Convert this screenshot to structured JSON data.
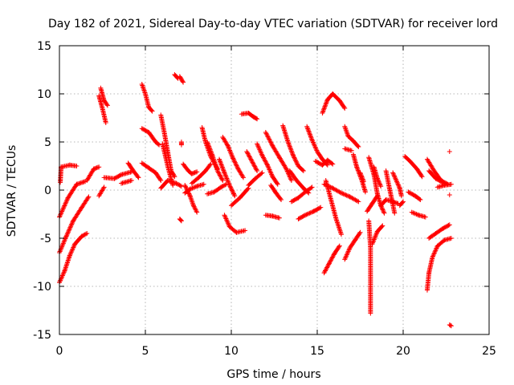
{
  "chart_data": {
    "type": "scatter",
    "title": "Day 182 of 2021, Sidereal Day-to-day VTEC variation (SDTVAR) for receiver lord",
    "xlabel": "GPS time / hours",
    "ylabel": "SDTVAR / TECUs",
    "xlim": [
      0,
      25
    ],
    "ylim": [
      -15,
      15
    ],
    "xticks": [
      0,
      5,
      10,
      15,
      20,
      25
    ],
    "yticks": [
      -15,
      -10,
      -5,
      0,
      5,
      10,
      15
    ],
    "xtick_labels": [
      "0",
      "5",
      "10",
      "15",
      "20",
      "25"
    ],
    "ytick_labels": [
      "-15",
      "-10",
      "-5",
      "0",
      "5",
      "10",
      "15"
    ],
    "grid": true,
    "marker": "+",
    "marker_color": "#ff0000",
    "series_segments": [
      [
        [
          0.0,
          -2.8
        ],
        [
          0.5,
          -0.8
        ],
        [
          1.0,
          0.6
        ],
        [
          1.5,
          0.9
        ]
      ],
      [
        [
          0.0,
          -6.5
        ],
        [
          0.4,
          -4.8
        ],
        [
          0.8,
          -3.2
        ],
        [
          1.3,
          -1.8
        ],
        [
          1.7,
          -0.7
        ]
      ],
      [
        [
          0.0,
          -9.6
        ],
        [
          0.3,
          -8.4
        ],
        [
          0.6,
          -6.8
        ],
        [
          0.9,
          -5.6
        ],
        [
          1.3,
          -4.8
        ],
        [
          1.6,
          -4.5
        ]
      ],
      [
        [
          0.05,
          0.8
        ],
        [
          0.1,
          2.4
        ],
        [
          0.6,
          2.6
        ],
        [
          1.0,
          2.5
        ]
      ],
      [
        [
          1.6,
          1.0
        ],
        [
          2.0,
          2.2
        ],
        [
          2.3,
          2.4
        ]
      ],
      [
        [
          2.3,
          -0.6
        ],
        [
          2.6,
          0.3
        ]
      ],
      [
        [
          2.3,
          9.8
        ],
        [
          2.5,
          8.5
        ],
        [
          2.7,
          7.0
        ]
      ],
      [
        [
          2.4,
          10.6
        ],
        [
          2.6,
          9.3
        ],
        [
          2.8,
          8.8
        ]
      ],
      [
        [
          2.6,
          1.3
        ],
        [
          3.2,
          1.2
        ],
        [
          3.6,
          1.6
        ],
        [
          4.2,
          1.9
        ]
      ],
      [
        [
          3.6,
          0.7
        ],
        [
          4.2,
          1.0
        ]
      ],
      [
        [
          4.0,
          2.8
        ],
        [
          4.3,
          2.0
        ],
        [
          4.6,
          1.3
        ]
      ],
      [
        [
          4.8,
          11.0
        ],
        [
          5.0,
          10.0
        ],
        [
          5.2,
          8.6
        ],
        [
          5.4,
          8.2
        ]
      ],
      [
        [
          4.8,
          6.4
        ],
        [
          5.2,
          6.0
        ],
        [
          5.6,
          5.0
        ],
        [
          5.8,
          4.7
        ]
      ],
      [
        [
          4.8,
          2.8
        ],
        [
          5.2,
          2.3
        ],
        [
          5.6,
          1.8
        ],
        [
          5.9,
          1.0
        ]
      ],
      [
        [
          5.9,
          7.8
        ],
        [
          6.1,
          6.0
        ],
        [
          6.3,
          4.0
        ],
        [
          6.5,
          2.0
        ],
        [
          6.7,
          1.4
        ]
      ],
      [
        [
          6.0,
          4.8
        ],
        [
          6.3,
          2.5
        ],
        [
          6.6,
          0.5
        ]
      ],
      [
        [
          5.9,
          0.2
        ],
        [
          6.3,
          1.0
        ],
        [
          6.8,
          0.7
        ],
        [
          7.1,
          0.4
        ]
      ],
      [
        [
          6.7,
          12.0
        ],
        [
          6.9,
          11.6
        ]
      ],
      [
        [
          7.0,
          11.8
        ],
        [
          7.2,
          11.2
        ]
      ],
      [
        [
          7.1,
          5.0
        ],
        [
          7.1,
          4.7
        ]
      ],
      [
        [
          7.0,
          -3.0
        ],
        [
          7.1,
          -3.2
        ]
      ],
      [
        [
          7.2,
          2.7
        ],
        [
          7.5,
          2.0
        ],
        [
          7.7,
          1.7
        ],
        [
          8.0,
          1.9
        ]
      ],
      [
        [
          7.3,
          -0.3
        ],
        [
          7.6,
          0.1
        ],
        [
          8.0,
          0.4
        ],
        [
          8.4,
          0.6
        ]
      ],
      [
        [
          7.3,
          0.5
        ],
        [
          7.6,
          -0.6
        ],
        [
          7.8,
          -1.6
        ],
        [
          8.0,
          -2.3
        ]
      ],
      [
        [
          7.7,
          0.7
        ],
        [
          8.1,
          1.3
        ],
        [
          8.5,
          2.0
        ],
        [
          8.8,
          2.7
        ]
      ],
      [
        [
          8.3,
          6.5
        ],
        [
          8.5,
          5.0
        ],
        [
          8.8,
          3.5
        ],
        [
          9.2,
          2.2
        ]
      ],
      [
        [
          8.6,
          -0.4
        ],
        [
          9.0,
          -0.2
        ],
        [
          9.4,
          0.3
        ],
        [
          9.7,
          0.6
        ]
      ],
      [
        [
          8.6,
          5.0
        ],
        [
          8.9,
          3.6
        ],
        [
          9.2,
          2.0
        ],
        [
          9.5,
          1.0
        ]
      ],
      [
        [
          9.3,
          3.2
        ],
        [
          9.6,
          1.8
        ],
        [
          9.9,
          0.5
        ],
        [
          10.2,
          -0.6
        ]
      ],
      [
        [
          9.5,
          5.5
        ],
        [
          9.8,
          4.6
        ],
        [
          10.1,
          3.3
        ],
        [
          10.4,
          2.2
        ],
        [
          10.7,
          1.3
        ]
      ],
      [
        [
          9.6,
          -2.6
        ],
        [
          9.9,
          -3.8
        ],
        [
          10.3,
          -4.4
        ],
        [
          10.8,
          -4.2
        ]
      ],
      [
        [
          10.0,
          -1.6
        ],
        [
          10.5,
          -0.8
        ],
        [
          11.0,
          0.2
        ]
      ],
      [
        [
          10.6,
          7.9
        ],
        [
          11.0,
          8.0
        ],
        [
          11.3,
          7.6
        ],
        [
          11.5,
          7.4
        ]
      ],
      [
        [
          10.9,
          4.0
        ],
        [
          11.2,
          3.0
        ],
        [
          11.5,
          2.0
        ]
      ],
      [
        [
          11.0,
          0.5
        ],
        [
          11.4,
          1.2
        ],
        [
          11.8,
          1.8
        ]
      ],
      [
        [
          11.5,
          4.8
        ],
        [
          11.8,
          3.6
        ],
        [
          12.1,
          2.6
        ],
        [
          12.4,
          1.4
        ],
        [
          12.7,
          0.6
        ]
      ],
      [
        [
          12.0,
          6.0
        ],
        [
          12.4,
          4.6
        ],
        [
          12.8,
          3.4
        ],
        [
          13.2,
          2.2
        ],
        [
          13.5,
          1.0
        ]
      ],
      [
        [
          12.0,
          -2.6
        ],
        [
          12.4,
          -2.7
        ],
        [
          12.8,
          -2.9
        ]
      ],
      [
        [
          12.3,
          0.5
        ],
        [
          12.6,
          -0.3
        ],
        [
          12.9,
          -1.0
        ]
      ],
      [
        [
          13.0,
          6.7
        ],
        [
          13.3,
          5.0
        ],
        [
          13.6,
          3.6
        ],
        [
          13.9,
          2.5
        ],
        [
          14.2,
          2.0
        ]
      ],
      [
        [
          13.4,
          2.0
        ],
        [
          13.8,
          1.0
        ],
        [
          14.2,
          0.2
        ],
        [
          14.5,
          -0.3
        ]
      ],
      [
        [
          13.5,
          -1.2
        ],
        [
          13.9,
          -0.8
        ],
        [
          14.3,
          -0.2
        ],
        [
          14.7,
          0.3
        ]
      ],
      [
        [
          13.9,
          -3.0
        ],
        [
          14.3,
          -2.6
        ],
        [
          14.8,
          -2.2
        ],
        [
          15.2,
          -1.8
        ]
      ],
      [
        [
          14.4,
          6.6
        ],
        [
          14.7,
          5.2
        ],
        [
          15.0,
          4.0
        ],
        [
          15.3,
          3.2
        ],
        [
          15.6,
          2.6
        ]
      ],
      [
        [
          14.9,
          3.0
        ],
        [
          15.3,
          2.6
        ],
        [
          15.6,
          3.1
        ],
        [
          15.9,
          2.7
        ]
      ],
      [
        [
          15.3,
          8.0
        ],
        [
          15.6,
          9.4
        ],
        [
          15.9,
          10.0
        ],
        [
          16.3,
          9.3
        ],
        [
          16.6,
          8.5
        ]
      ],
      [
        [
          15.5,
          1.0
        ],
        [
          15.8,
          -1.0
        ],
        [
          16.1,
          -3.0
        ],
        [
          16.4,
          -4.6
        ]
      ],
      [
        [
          15.4,
          -8.6
        ],
        [
          15.7,
          -7.6
        ],
        [
          16.0,
          -6.6
        ],
        [
          16.3,
          -5.8
        ]
      ],
      [
        [
          15.4,
          0.6
        ],
        [
          15.9,
          0.2
        ],
        [
          16.4,
          -0.3
        ],
        [
          16.9,
          -0.7
        ],
        [
          17.4,
          -1.2
        ]
      ],
      [
        [
          16.6,
          6.6
        ],
        [
          16.8,
          5.6
        ],
        [
          17.1,
          5.1
        ],
        [
          17.4,
          4.5
        ]
      ],
      [
        [
          16.6,
          4.3
        ],
        [
          17.0,
          4.1
        ]
      ],
      [
        [
          16.6,
          -7.2
        ],
        [
          16.9,
          -6.0
        ],
        [
          17.2,
          -5.2
        ],
        [
          17.5,
          -4.4
        ]
      ],
      [
        [
          17.1,
          3.7
        ],
        [
          17.3,
          2.4
        ],
        [
          17.6,
          1.0
        ],
        [
          17.8,
          -0.2
        ]
      ],
      [
        [
          17.5,
          1.8
        ],
        [
          17.7,
          0.9
        ]
      ],
      [
        [
          18.0,
          3.4
        ],
        [
          18.3,
          1.6
        ],
        [
          18.5,
          -0.4
        ],
        [
          18.7,
          -1.6
        ],
        [
          18.9,
          -2.4
        ]
      ],
      [
        [
          18.0,
          -3.2
        ],
        [
          18.1,
          -6.0
        ],
        [
          18.1,
          -9.0
        ],
        [
          18.1,
          -12.8
        ]
      ],
      [
        [
          17.9,
          -2.2
        ],
        [
          18.2,
          -1.4
        ],
        [
          18.5,
          -0.6
        ]
      ],
      [
        [
          18.3,
          2.4
        ],
        [
          18.5,
          1.2
        ],
        [
          18.7,
          0.4
        ]
      ],
      [
        [
          18.2,
          -5.6
        ],
        [
          18.5,
          -4.3
        ],
        [
          18.8,
          -3.7
        ]
      ],
      [
        [
          18.7,
          -1.6
        ],
        [
          19.0,
          -1.0
        ],
        [
          19.4,
          -1.2
        ],
        [
          19.7,
          -1.4
        ]
      ],
      [
        [
          19.0,
          2.0
        ],
        [
          19.2,
          0.2
        ],
        [
          19.4,
          -1.5
        ],
        [
          19.5,
          -2.4
        ]
      ],
      [
        [
          19.4,
          1.8
        ],
        [
          19.6,
          1.0
        ],
        [
          19.8,
          0.2
        ],
        [
          19.9,
          -0.6
        ]
      ],
      [
        [
          19.8,
          -1.6
        ],
        [
          20.0,
          -1.2
        ]
      ],
      [
        [
          20.1,
          3.5
        ],
        [
          20.4,
          3.0
        ],
        [
          20.8,
          2.2
        ],
        [
          21.1,
          1.4
        ]
      ],
      [
        [
          20.5,
          -2.3
        ],
        [
          20.9,
          -2.6
        ],
        [
          21.3,
          -2.8
        ]
      ],
      [
        [
          20.3,
          -0.2
        ],
        [
          20.7,
          -0.6
        ],
        [
          21.0,
          -1.0
        ]
      ],
      [
        [
          21.4,
          3.2
        ],
        [
          21.8,
          2.0
        ],
        [
          22.2,
          1.0
        ],
        [
          22.6,
          0.6
        ]
      ],
      [
        [
          21.5,
          2.0
        ],
        [
          21.9,
          1.2
        ],
        [
          22.3,
          0.8
        ]
      ],
      [
        [
          21.4,
          -10.4
        ],
        [
          21.5,
          -8.6
        ],
        [
          21.7,
          -7.0
        ],
        [
          22.0,
          -5.8
        ],
        [
          22.4,
          -5.2
        ],
        [
          22.8,
          -5.0
        ]
      ],
      [
        [
          21.5,
          -5.0
        ],
        [
          21.9,
          -4.5
        ],
        [
          22.3,
          -4.0
        ],
        [
          22.7,
          -3.6
        ]
      ],
      [
        [
          22.0,
          0.3
        ],
        [
          22.4,
          0.5
        ],
        [
          22.8,
          0.6
        ]
      ],
      [
        [
          22.7,
          -14.0
        ],
        [
          22.8,
          -14.1
        ]
      ],
      [
        [
          22.7,
          4.0
        ]
      ],
      [
        [
          22.7,
          -0.5
        ]
      ]
    ]
  }
}
